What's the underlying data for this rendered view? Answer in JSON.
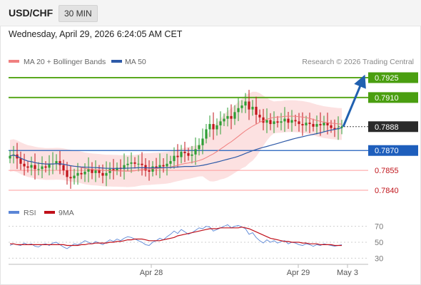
{
  "header": {
    "pair": "USD/CHF",
    "timeframe": "30 MIN"
  },
  "datetime": "Wednesday, April 29, 2026 6:24:05 AM CET",
  "legend": {
    "ma20": "MA 20 + Bollinger Bands",
    "ma50": "MA 50",
    "source": "Research © 2026 Trading Central",
    "rsi": "RSI",
    "ma9": "9MA"
  },
  "colors": {
    "up": "#2e9e35",
    "down": "#c2151b",
    "ma20": "#f08080",
    "ma50": "#2e5aa8",
    "resistance": "#5aa81e",
    "support_blue": "#1e5ebc",
    "support_red": "#ff9c9c",
    "current": "#2a2a2a",
    "band": "#fbd7d7",
    "arrow": "#2060b0",
    "rsi_line": "#5b86d6",
    "rsi_ma": "#c0101a"
  },
  "chart_data": [
    {
      "type": "candlestick",
      "title": "USD/CHF",
      "ylim": [
        0.7833,
        0.7932
      ],
      "x_tick_labels": [
        "Apr 28",
        "Apr 29",
        "May 3"
      ],
      "levels": [
        {
          "value": 0.7925,
          "label": "0.7925",
          "kind": "resistance"
        },
        {
          "value": 0.791,
          "label": "0.7910",
          "kind": "resistance"
        },
        {
          "value": 0.7888,
          "label": "0.7888",
          "kind": "current"
        },
        {
          "value": 0.787,
          "label": "0.7870",
          "kind": "support"
        },
        {
          "value": 0.7855,
          "label": "0.7855",
          "kind": "support"
        },
        {
          "value": 0.784,
          "label": "0.7840",
          "kind": "support"
        }
      ],
      "closes": [
        0.7866,
        0.7867,
        0.7864,
        0.786,
        0.7858,
        0.7857,
        0.7859,
        0.7856,
        0.7856,
        0.7858,
        0.7857,
        0.786,
        0.786,
        0.7862,
        0.7859,
        0.7855,
        0.785,
        0.7849,
        0.7851,
        0.7853,
        0.7852,
        0.7854,
        0.7856,
        0.7853,
        0.7855,
        0.7853,
        0.7851,
        0.7853,
        0.7856,
        0.7855,
        0.7857,
        0.7856,
        0.7859,
        0.786,
        0.7861,
        0.786,
        0.786,
        0.7859,
        0.7855,
        0.7854,
        0.7858,
        0.7857,
        0.7859,
        0.7858,
        0.786,
        0.7862,
        0.7866,
        0.7865,
        0.7869,
        0.7868,
        0.7866,
        0.7867,
        0.7871,
        0.7874,
        0.7879,
        0.7886,
        0.789,
        0.7886,
        0.7889,
        0.7892,
        0.7894,
        0.7896,
        0.7894,
        0.7899,
        0.7902,
        0.7904,
        0.7907,
        0.7901,
        0.7903,
        0.7897,
        0.7895,
        0.7891,
        0.7893,
        0.789,
        0.7892,
        0.7891,
        0.7892,
        0.7894,
        0.7891,
        0.7893,
        0.7892,
        0.789,
        0.7889,
        0.7891,
        0.789,
        0.7888,
        0.789,
        0.7889,
        0.7891,
        0.7889,
        0.7887,
        0.7886,
        0.7887,
        0.7888
      ],
      "forecast_path": [
        [
          0.7888,
          0.7888
        ],
        [
          0.7888,
          0.7925
        ]
      ],
      "series": [
        {
          "name": "MA 20 + Bollinger Bands"
        },
        {
          "name": "MA 50"
        }
      ]
    },
    {
      "type": "line",
      "title": "RSI",
      "ylim": [
        25,
        75
      ],
      "y_ticks": [
        70,
        50,
        30
      ],
      "series": [
        {
          "name": "RSI",
          "values": [
            46,
            48,
            47,
            46,
            49,
            47,
            48,
            45,
            44,
            47,
            48,
            46,
            49,
            50,
            47,
            44,
            42,
            45,
            48,
            47,
            49,
            52,
            50,
            48,
            51,
            49,
            47,
            50,
            53,
            51,
            54,
            52,
            55,
            57,
            56,
            54,
            52,
            50,
            47,
            46,
            50,
            52,
            55,
            53,
            57,
            60,
            64,
            61,
            66,
            63,
            60,
            62,
            65,
            68,
            67,
            70,
            69,
            64,
            66,
            68,
            70,
            72,
            68,
            70,
            71,
            69,
            67,
            60,
            62,
            56,
            52,
            49,
            53,
            50,
            52,
            49,
            51,
            52,
            48,
            50,
            49,
            47,
            46,
            48,
            47,
            45,
            47,
            46,
            48,
            47,
            46,
            45,
            46,
            47
          ]
        },
        {
          "name": "9MA",
          "values": [
            48,
            48,
            47,
            47,
            47,
            47,
            47,
            47,
            47,
            47,
            47,
            47,
            47,
            47,
            47,
            47,
            46,
            46,
            46,
            46,
            47,
            47,
            48,
            48,
            49,
            49,
            49,
            49,
            50,
            50,
            51,
            51,
            52,
            53,
            53,
            54,
            54,
            54,
            53,
            52,
            52,
            52,
            52,
            53,
            54,
            55,
            56,
            58,
            59,
            60,
            61,
            62,
            63,
            64,
            65,
            66,
            67,
            67,
            67,
            68,
            68,
            68,
            68,
            68,
            68,
            69,
            68,
            67,
            65,
            63,
            61,
            59,
            57,
            55,
            54,
            53,
            52,
            51,
            51,
            50,
            50,
            50,
            49,
            49,
            48,
            48,
            48,
            47,
            47,
            47,
            47,
            46,
            46,
            46
          ]
        }
      ]
    }
  ]
}
